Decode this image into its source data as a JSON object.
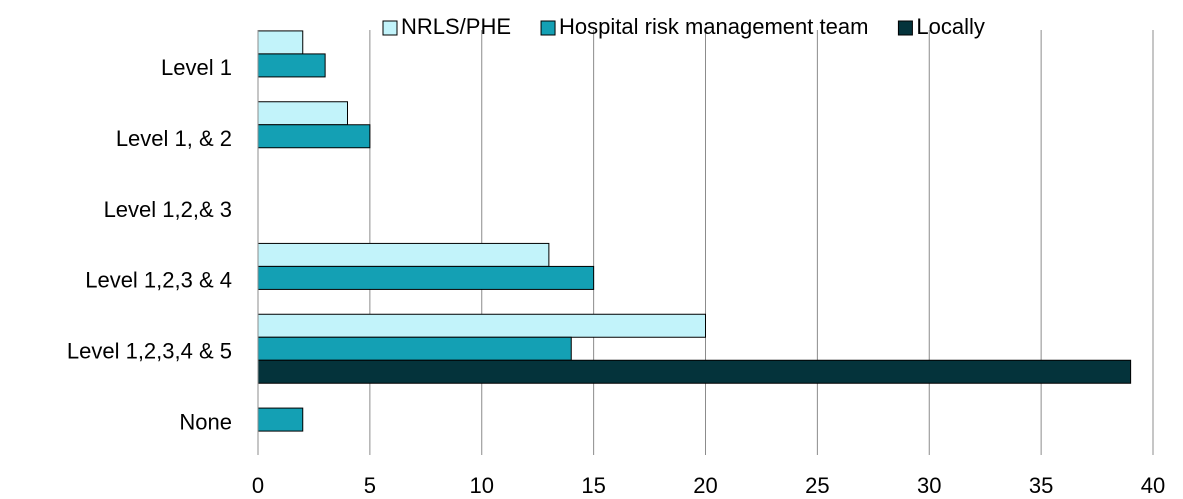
{
  "chart_data": {
    "type": "bar",
    "orientation": "horizontal",
    "categories": [
      "Level 1",
      "Level 1, & 2",
      "Level 1,2,& 3",
      "Level 1,2,3 & 4",
      "Level 1,2,3,4 & 5",
      "None"
    ],
    "series": [
      {
        "name": "NRLS/PHE",
        "color": "#c2f3fa",
        "values": [
          2,
          4,
          0,
          13,
          20,
          0
        ]
      },
      {
        "name": "Hospital risk management team",
        "color": "#14a0b4",
        "values": [
          3,
          5,
          0,
          15,
          14,
          2
        ]
      },
      {
        "name": "Locally",
        "color": "#04333b",
        "values": [
          0,
          0,
          0,
          0,
          39,
          0
        ]
      }
    ],
    "xlim": [
      0,
      40
    ],
    "xticks": [
      0,
      5,
      10,
      15,
      20,
      25,
      30,
      35,
      40
    ],
    "grid": true,
    "legend": "top"
  }
}
